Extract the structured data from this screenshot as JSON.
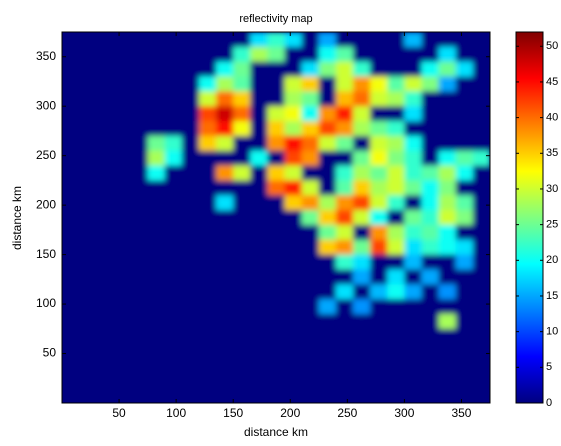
{
  "chart_data": {
    "type": "heatmap",
    "title": "reflectivity map",
    "xlabel": "distance km",
    "ylabel": "distance km",
    "colormap": "jet",
    "xlim": [
      0,
      375
    ],
    "ylim": [
      0,
      375
    ],
    "xticks": [
      50,
      100,
      150,
      200,
      250,
      300,
      350
    ],
    "yticks": [
      50,
      100,
      150,
      200,
      250,
      300,
      350
    ],
    "clim": [
      0,
      52
    ],
    "cticks": [
      0,
      5,
      10,
      15,
      20,
      25,
      30,
      35,
      40,
      45,
      50
    ],
    "x": [
      7.5,
      22.5,
      37.5,
      52.5,
      67.5,
      82.5,
      97.5,
      112.5,
      127.5,
      142.5,
      157.5,
      172.5,
      187.5,
      202.5,
      217.5,
      232.5,
      247.5,
      262.5,
      277.5,
      292.5,
      307.5,
      322.5,
      337.5,
      352.5,
      367.5
    ],
    "y": [
      367.5,
      352.5,
      337.5,
      322.5,
      307.5,
      292.5,
      277.5,
      262.5,
      247.5,
      232.5,
      217.5,
      202.5,
      187.5,
      172.5,
      157.5,
      142.5,
      127.5,
      112.5,
      97.5,
      82.5,
      67.5,
      52.5,
      37.5,
      22.5,
      7.5
    ],
    "z": [
      [
        0,
        0,
        0,
        0,
        0,
        0,
        0,
        0,
        0,
        0,
        0,
        18,
        22,
        18,
        0,
        15,
        0,
        0,
        0,
        0,
        16,
        0,
        0,
        0,
        0
      ],
      [
        0,
        0,
        0,
        0,
        0,
        0,
        0,
        0,
        0,
        0,
        22,
        28,
        25,
        0,
        0,
        20,
        24,
        0,
        0,
        0,
        0,
        0,
        18,
        0,
        0
      ],
      [
        0,
        0,
        0,
        0,
        0,
        0,
        0,
        0,
        0,
        20,
        25,
        0,
        0,
        0,
        18,
        26,
        30,
        22,
        0,
        0,
        0,
        20,
        25,
        18,
        0
      ],
      [
        0,
        0,
        0,
        0,
        0,
        0,
        0,
        0,
        20,
        28,
        24,
        0,
        0,
        30,
        35,
        0,
        30,
        38,
        32,
        24,
        30,
        26,
        15,
        0,
        0
      ],
      [
        0,
        0,
        0,
        0,
        0,
        0,
        0,
        0,
        30,
        40,
        35,
        0,
        0,
        28,
        25,
        0,
        36,
        40,
        30,
        28,
        22,
        0,
        0,
        0,
        0
      ],
      [
        0,
        0,
        0,
        0,
        0,
        0,
        0,
        0,
        42,
        48,
        40,
        0,
        30,
        32,
        20,
        38,
        44,
        30,
        0,
        0,
        18,
        0,
        0,
        0,
        0
      ],
      [
        0,
        0,
        0,
        0,
        0,
        0,
        0,
        0,
        40,
        45,
        32,
        0,
        35,
        28,
        35,
        42,
        38,
        28,
        25,
        22,
        0,
        0,
        0,
        0,
        0
      ],
      [
        0,
        0,
        0,
        0,
        0,
        25,
        22,
        0,
        35,
        30,
        0,
        0,
        38,
        45,
        40,
        30,
        25,
        0,
        30,
        28,
        20,
        0,
        0,
        0,
        0
      ],
      [
        0,
        0,
        0,
        0,
        0,
        28,
        20,
        0,
        0,
        0,
        0,
        20,
        0,
        42,
        38,
        0,
        0,
        25,
        32,
        26,
        22,
        0,
        20,
        24,
        22
      ],
      [
        0,
        0,
        0,
        0,
        0,
        20,
        0,
        0,
        0,
        38,
        30,
        0,
        35,
        30,
        0,
        0,
        22,
        28,
        25,
        30,
        22,
        24,
        28,
        20,
        0
      ],
      [
        0,
        0,
        0,
        0,
        0,
        0,
        0,
        0,
        0,
        0,
        0,
        0,
        40,
        44,
        30,
        0,
        24,
        35,
        28,
        30,
        25,
        20,
        26,
        0,
        0
      ],
      [
        0,
        0,
        0,
        0,
        0,
        0,
        0,
        0,
        0,
        18,
        0,
        0,
        0,
        35,
        38,
        28,
        38,
        42,
        30,
        22,
        0,
        20,
        28,
        24,
        0
      ],
      [
        0,
        0,
        0,
        0,
        0,
        0,
        0,
        0,
        0,
        0,
        0,
        0,
        0,
        0,
        25,
        35,
        42,
        30,
        20,
        0,
        25,
        22,
        30,
        26,
        0
      ],
      [
        0,
        0,
        0,
        0,
        0,
        0,
        0,
        0,
        0,
        0,
        0,
        0,
        0,
        0,
        0,
        25,
        30,
        0,
        38,
        28,
        22,
        24,
        20,
        0,
        0
      ],
      [
        0,
        0,
        0,
        0,
        0,
        0,
        0,
        0,
        0,
        0,
        0,
        0,
        0,
        0,
        0,
        35,
        38,
        25,
        42,
        30,
        18,
        22,
        20,
        18,
        0
      ],
      [
        0,
        0,
        0,
        0,
        0,
        0,
        0,
        0,
        0,
        0,
        0,
        0,
        0,
        0,
        0,
        0,
        22,
        18,
        0,
        0,
        16,
        0,
        0,
        15,
        0
      ],
      [
        0,
        0,
        0,
        0,
        0,
        0,
        0,
        0,
        0,
        0,
        0,
        0,
        0,
        0,
        0,
        0,
        0,
        15,
        0,
        18,
        0,
        15,
        0,
        0,
        0
      ],
      [
        0,
        0,
        0,
        0,
        0,
        0,
        0,
        0,
        0,
        0,
        0,
        0,
        0,
        0,
        0,
        0,
        18,
        0,
        16,
        20,
        15,
        0,
        14,
        0,
        0
      ],
      [
        0,
        0,
        0,
        0,
        0,
        0,
        0,
        0,
        0,
        0,
        0,
        0,
        0,
        0,
        0,
        15,
        0,
        14,
        0,
        0,
        0,
        0,
        0,
        0,
        0
      ],
      [
        0,
        0,
        0,
        0,
        0,
        0,
        0,
        0,
        0,
        0,
        0,
        0,
        0,
        0,
        0,
        0,
        0,
        0,
        0,
        0,
        0,
        0,
        28,
        0,
        0
      ],
      [
        0,
        0,
        0,
        0,
        0,
        0,
        0,
        0,
        0,
        0,
        0,
        0,
        0,
        0,
        0,
        0,
        0,
        0,
        0,
        0,
        0,
        0,
        0,
        0,
        0
      ],
      [
        0,
        0,
        0,
        0,
        0,
        0,
        0,
        0,
        0,
        0,
        0,
        0,
        0,
        0,
        0,
        0,
        0,
        0,
        0,
        0,
        0,
        0,
        0,
        0,
        0
      ],
      [
        0,
        0,
        0,
        0,
        0,
        0,
        0,
        0,
        0,
        0,
        0,
        0,
        0,
        0,
        0,
        0,
        0,
        0,
        0,
        0,
        0,
        0,
        0,
        0,
        0
      ],
      [
        0,
        0,
        0,
        0,
        0,
        0,
        0,
        0,
        0,
        0,
        0,
        0,
        0,
        0,
        0,
        0,
        0,
        0,
        0,
        0,
        0,
        0,
        0,
        0,
        0
      ],
      [
        0,
        0,
        0,
        0,
        0,
        0,
        0,
        0,
        0,
        0,
        0,
        0,
        0,
        0,
        0,
        0,
        0,
        0,
        0,
        0,
        0,
        0,
        0,
        0,
        0
      ]
    ]
  }
}
